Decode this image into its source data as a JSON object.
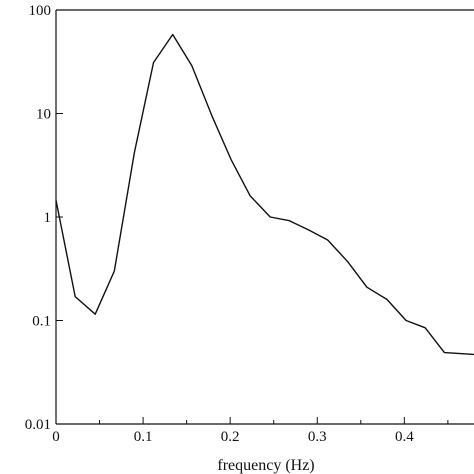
{
  "chart_data": {
    "type": "line",
    "xlabel": "frequency (Hz)",
    "ylabel": "",
    "xscale": "linear",
    "yscale": "log",
    "grid": false,
    "xlim": [
      0,
      0.48
    ],
    "ylim": [
      0.01,
      100
    ],
    "x_ticks": [
      0,
      0.1,
      0.2,
      0.3,
      0.4
    ],
    "x_tick_labels": [
      "0",
      "0.1",
      "0.2",
      "0.3",
      "0.4"
    ],
    "y_ticks": [
      0.01,
      0.1,
      1,
      10,
      100
    ],
    "y_tick_labels": [
      "0.01",
      "0.1",
      "1",
      "10",
      "100"
    ],
    "series": [
      {
        "color": "#111111",
        "x": [
          0,
          0.022,
          0.045,
          0.067,
          0.09,
          0.112,
          0.134,
          0.156,
          0.179,
          0.201,
          0.223,
          0.246,
          0.268,
          0.29,
          0.312,
          0.335,
          0.357,
          0.38,
          0.402,
          0.424,
          0.446,
          0.48
        ],
        "y": [
          1.45,
          0.17,
          0.115,
          0.3,
          4.2,
          31,
          58,
          29,
          9.5,
          3.6,
          1.6,
          1.0,
          0.92,
          0.75,
          0.6,
          0.37,
          0.21,
          0.16,
          0.1,
          0.085,
          0.049,
          0.047
        ]
      }
    ]
  }
}
